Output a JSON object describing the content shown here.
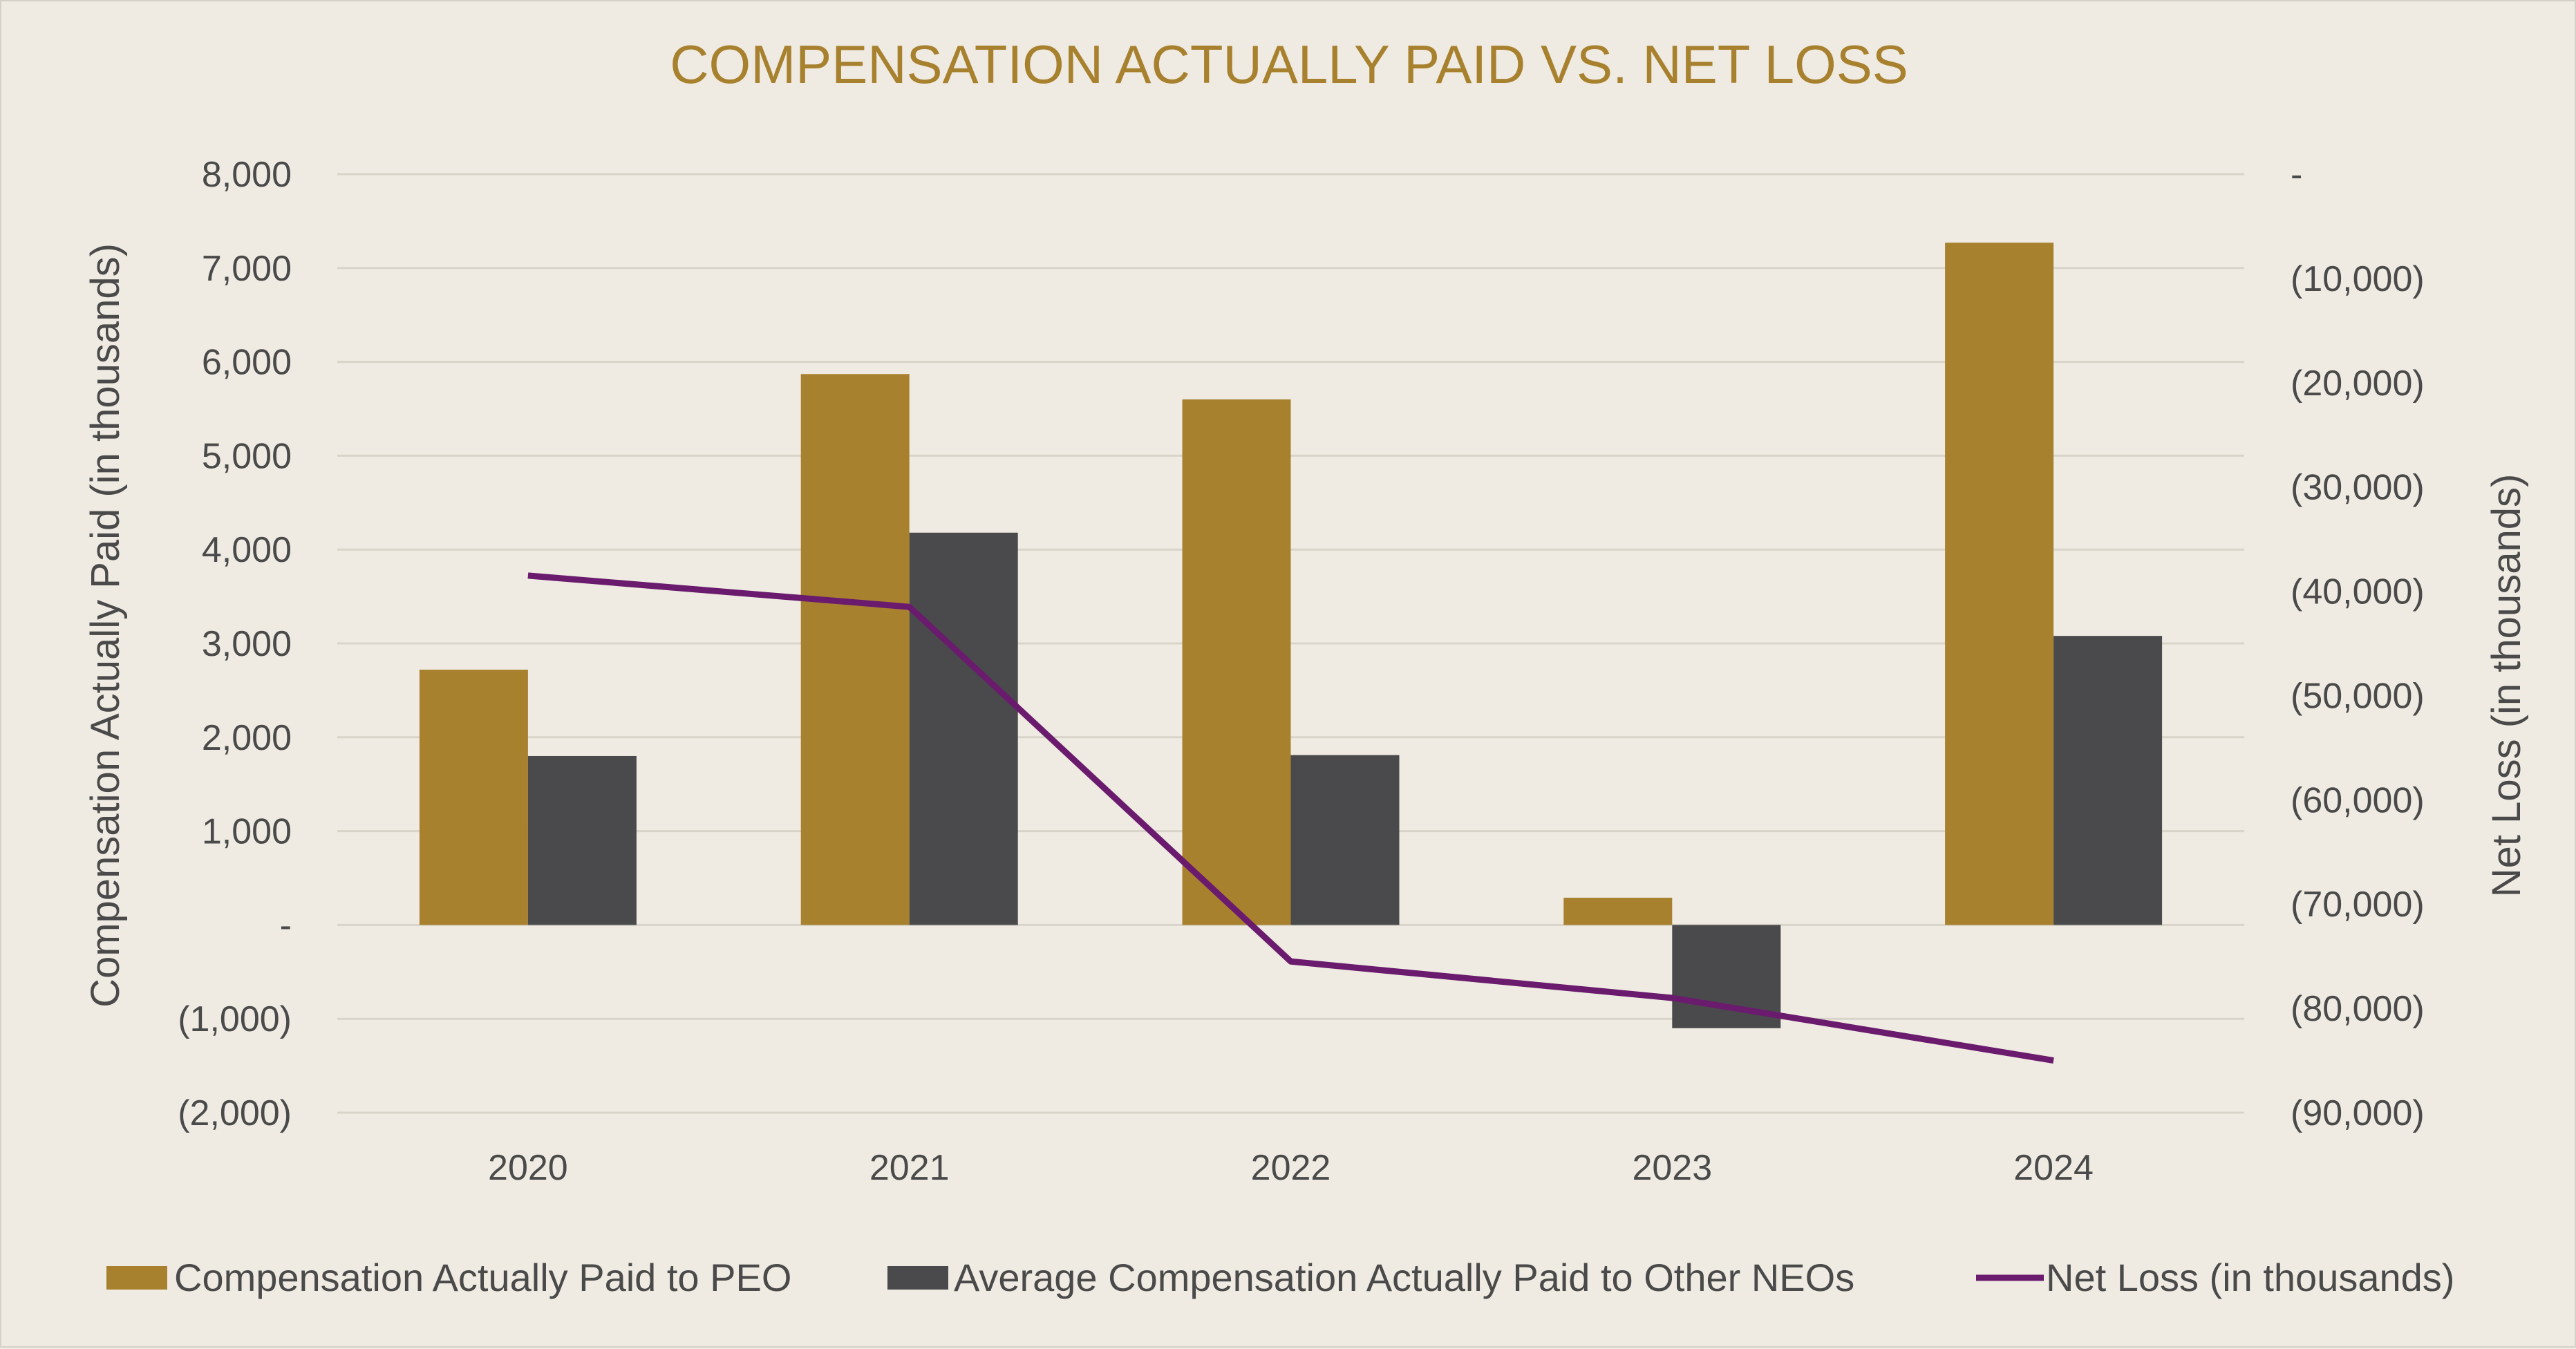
{
  "chart_data": {
    "type": "bar",
    "title": "COMPENSATION ACTUALLY PAID VS. NET LOSS",
    "categories": [
      "2020",
      "2021",
      "2022",
      "2023",
      "2024"
    ],
    "series": [
      {
        "name": "Compensation Actually Paid to PEO",
        "type": "bar",
        "axis": "left",
        "color": "#a8812f",
        "values": [
          2720,
          5870,
          5600,
          290,
          7270
        ]
      },
      {
        "name": "Average Compensation Actually Paid to Other NEOs",
        "type": "bar",
        "axis": "left",
        "color": "#4a4a4c",
        "values": [
          1800,
          4180,
          1810,
          -1100,
          3080
        ]
      },
      {
        "name": "Net Loss (in thousands)",
        "type": "line",
        "axis": "right",
        "color": "#6a1b6e",
        "values": [
          -38500,
          -41500,
          -75500,
          -79000,
          -85000
        ]
      }
    ],
    "y_left": {
      "label": "Compensation Actually Paid (in thousands)",
      "ylim": [
        -2000,
        8000
      ],
      "ticks": [
        8000,
        7000,
        6000,
        5000,
        4000,
        3000,
        2000,
        1000,
        0,
        -1000,
        -2000
      ],
      "tick_labels": [
        "8,000",
        "7,000",
        "6,000",
        "5,000",
        "4,000",
        "3,000",
        "2,000",
        "1,000",
        "-",
        "(1,000)",
        "(2,000)"
      ]
    },
    "y_right": {
      "label": "Net Loss (in thousands)",
      "ylim": [
        -90000,
        0
      ],
      "ticks": [
        0,
        -10000,
        -20000,
        -30000,
        -40000,
        -50000,
        -60000,
        -70000,
        -80000,
        -90000
      ],
      "tick_labels": [
        "-",
        "(10,000)",
        "(20,000)",
        "(30,000)",
        "(40,000)",
        "(50,000)",
        "(60,000)",
        "(70,000)",
        "(80,000)",
        "(90,000)"
      ]
    },
    "grid": true,
    "legend_position": "bottom"
  }
}
